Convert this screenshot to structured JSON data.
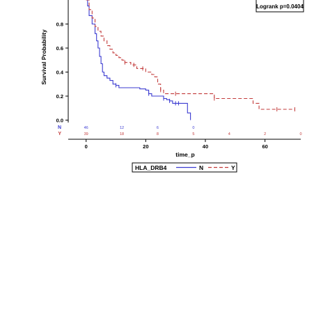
{
  "chart_data": {
    "type": "line",
    "subtype": "kaplan-meier survival curve",
    "ylabel": "Survival Probability",
    "xlabel": "time_p",
    "xlim": [
      -6,
      72
    ],
    "ylim": [
      -0.02,
      1.0
    ],
    "x_ticks": [
      0,
      20,
      40,
      60
    ],
    "x_tick_labels": [
      "0",
      "20",
      "40",
      "60"
    ],
    "y_ticks": [
      0.0,
      0.2,
      0.4,
      0.6,
      0.8
    ],
    "y_tick_labels": [
      "0.0",
      "0.2",
      "0.4",
      "0.6",
      "0.8"
    ],
    "grid": false,
    "logrank_text": "Logrank p=0.0404",
    "legend": {
      "title": "HLA_DRB4",
      "placement": "bottom",
      "entries": [
        {
          "label": "N",
          "color": "#3b3bd1",
          "dash": "solid"
        },
        {
          "label": "Y",
          "color": "#c23a3a",
          "dash": "dashed"
        }
      ]
    },
    "series": [
      {
        "name": "N",
        "color": "#3b3bd1",
        "dash": "solid",
        "points": [
          [
            0,
            1.0
          ],
          [
            0.5,
            0.95
          ],
          [
            1,
            0.87
          ],
          [
            2,
            0.8
          ],
          [
            3,
            0.72
          ],
          [
            3.5,
            0.66
          ],
          [
            4,
            0.6
          ],
          [
            4.5,
            0.53
          ],
          [
            5,
            0.47
          ],
          [
            5.5,
            0.4
          ],
          [
            6,
            0.37
          ],
          [
            7,
            0.35
          ],
          [
            8,
            0.33
          ],
          [
            9,
            0.3
          ],
          [
            10,
            0.29
          ],
          [
            11,
            0.27
          ],
          [
            17,
            0.27
          ],
          [
            18,
            0.26
          ],
          [
            20,
            0.25
          ],
          [
            21,
            0.22
          ],
          [
            22,
            0.2
          ],
          [
            25,
            0.2
          ],
          [
            26,
            0.18
          ],
          [
            27,
            0.17
          ],
          [
            28,
            0.16
          ],
          [
            29,
            0.14
          ],
          [
            33,
            0.14
          ],
          [
            34,
            0.06
          ],
          [
            35,
            0.0
          ]
        ],
        "censor_x": [
          10,
          21,
          26,
          28,
          30,
          31
        ]
      },
      {
        "name": "Y",
        "color": "#c23a3a",
        "dash": "dashed",
        "points": [
          [
            0,
            1.0
          ],
          [
            1,
            0.92
          ],
          [
            2,
            0.85
          ],
          [
            3,
            0.78
          ],
          [
            4,
            0.74
          ],
          [
            5,
            0.7
          ],
          [
            6,
            0.66
          ],
          [
            7,
            0.62
          ],
          [
            8,
            0.59
          ],
          [
            9,
            0.56
          ],
          [
            10,
            0.54
          ],
          [
            11,
            0.52
          ],
          [
            12,
            0.5
          ],
          [
            13,
            0.48
          ],
          [
            15,
            0.46
          ],
          [
            17,
            0.43
          ],
          [
            20,
            0.4
          ],
          [
            22,
            0.38
          ],
          [
            23,
            0.36
          ],
          [
            24,
            0.3
          ],
          [
            25,
            0.25
          ],
          [
            26,
            0.22
          ],
          [
            42,
            0.22
          ],
          [
            43,
            0.18
          ],
          [
            55,
            0.18
          ],
          [
            56,
            0.14
          ],
          [
            58,
            0.09
          ],
          [
            70,
            0.09
          ]
        ],
        "censor_x": [
          13,
          16,
          19,
          25,
          30,
          43,
          64,
          70
        ]
      }
    ],
    "risk_table": {
      "row_labels": [
        "N",
        "Y"
      ],
      "rows": [
        {
          "label": "N",
          "color": "#3b3bd1",
          "x": [
            0,
            12,
            24,
            36
          ],
          "values": [
            "46",
            "12",
            "6",
            "0"
          ]
        },
        {
          "label": "Y",
          "color": "#c23a3a",
          "x": [
            0,
            12,
            24,
            36,
            48,
            60,
            72
          ],
          "values": [
            "39",
            "18",
            "8",
            "5",
            "4",
            "2",
            "0"
          ]
        }
      ]
    }
  }
}
